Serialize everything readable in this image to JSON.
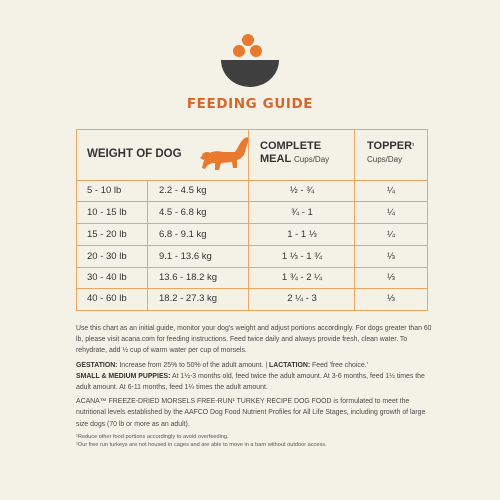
{
  "title": "FEEDING GUIDE",
  "colors": {
    "accent": "#d8652a",
    "border": "#eda661",
    "background": "#f4f2e6",
    "bowl": "#404040"
  },
  "icons": {
    "bowl": "food-bowl-icon",
    "dog": "dog-icon"
  },
  "table": {
    "headers": {
      "weight": "WEIGHT OF DOG",
      "complete_line1": "COMPLETE",
      "complete_line2": "MEAL",
      "complete_unit": "Cups/Day",
      "topper": "TOPPER",
      "topper_mark": "¹",
      "topper_unit": "Cups/Day"
    },
    "rows": [
      {
        "lb": "5 - 10 lb",
        "kg": "2.2 - 4.5 kg",
        "complete": "½ - ¾",
        "topper": "¼"
      },
      {
        "lb": "10 - 15 lb",
        "kg": "4.5 - 6.8 kg",
        "complete": "¾ - 1",
        "topper": "¼"
      },
      {
        "lb": "15 - 20 lb",
        "kg": "6.8 - 9.1 kg",
        "complete": "1 - 1 ⅓",
        "topper": "¼"
      },
      {
        "lb": "20 - 30 lb",
        "kg": "9.1 - 13.6 kg",
        "complete": "1 ⅓ - 1 ¾",
        "topper": "⅓"
      },
      {
        "lb": "30 - 40 lb",
        "kg": "13.6 - 18.2 kg",
        "complete": "1 ¾ - 2 ¼",
        "topper": "⅓"
      },
      {
        "lb": "40 - 60 lb",
        "kg": "18.2 - 27.3 kg",
        "complete": "2 ¼ - 3",
        "topper": "⅓"
      }
    ]
  },
  "notes": {
    "intro": "Use this chart as an initial guide, monitor your dog's weight and adjust portions accordingly. For dogs greater than 60 lb, please visit acana.com for feeding instructions. Feed twice daily and always provide fresh, clean water. To rehydrate, add ½ cup of warm water per cup of morsels.",
    "gestation_label": "GESTATION:",
    "gestation_text": " Increase from 25% to 50% of the adult amount. | ",
    "lactation_label": "LACTATION:",
    "lactation_text": " Feed 'free choice.'",
    "puppies_label": "SMALL & MEDIUM PUPPIES:",
    "puppies_text": " At 1½-3 months old, feed twice the adult amount. At 3-6 months, feed 1½ times the adult amount. At 6-11 months, feed 1¼ times the adult amount.",
    "aafco": "ACANA™ FREEZE-DRIED MORSELS FREE-RUN¹ TURKEY RECIPE DOG FOOD is formulated to meet the nutritional levels established by the AAFCO Dog Food Nutrient Profiles for All Life Stages, including growth of large size dogs (70 lb or more as an adult).",
    "footnote1": "¹Reduce other food portions accordingly to avoid overfeeding.",
    "footnote2": "¹Our free run turkeys are not housed in cages and are able to move in a barn without outdoor access."
  }
}
